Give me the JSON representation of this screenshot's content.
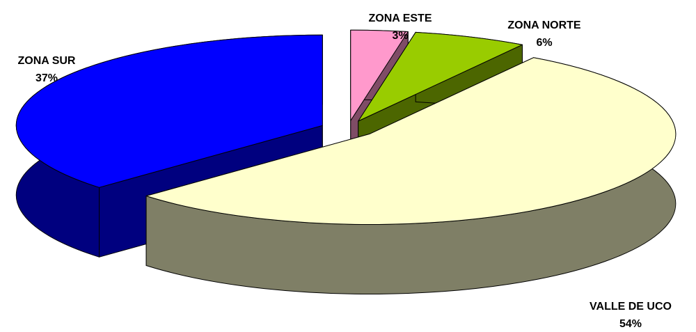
{
  "chart_data": {
    "type": "pie",
    "three_d": true,
    "categories": [
      "ZONA ESTE",
      "ZONA NORTE",
      "VALLE DE UCO",
      "ZONA SUR"
    ],
    "values": [
      3,
      6,
      54,
      37
    ],
    "value_labels": [
      "3%",
      "6%",
      "54%",
      "37%"
    ],
    "colors": [
      "#ff99cc",
      "#99cc00",
      "#ffffcc",
      "#0000ff"
    ]
  }
}
